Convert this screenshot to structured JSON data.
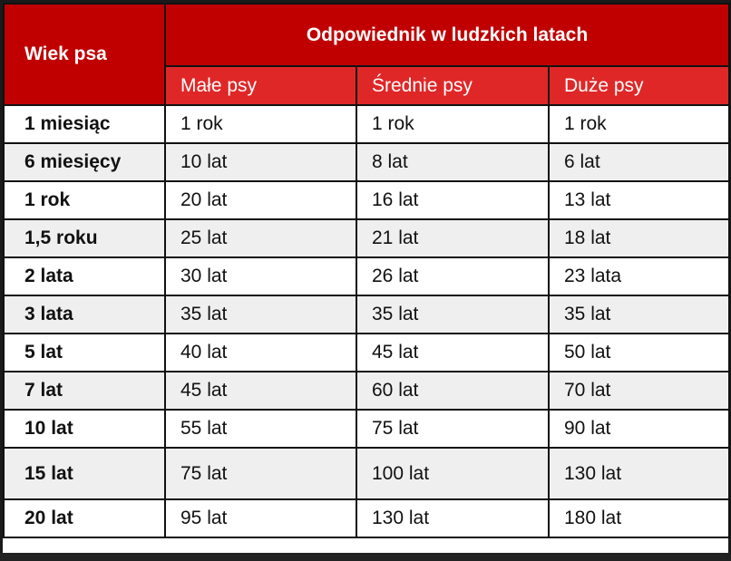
{
  "table": {
    "corner_header": "Wiek psa",
    "group_header": "Odpowiednik w ludzkich latach",
    "sub_headers": [
      "Małe psy",
      "Średnie psy",
      "Duże psy"
    ],
    "colors": {
      "header_dark_red": "#c00000",
      "header_light_red": "#e02727",
      "row_alt": "#efefef",
      "border": "#111111"
    },
    "rows": [
      {
        "age": "1 miesiąc",
        "small": "1 rok",
        "medium": "1 rok",
        "large": "1 rok"
      },
      {
        "age": "6 miesięcy",
        "small": "10 lat",
        "medium": "8 lat",
        "large": "6 lat"
      },
      {
        "age": "1 rok",
        "small": "20 lat",
        "medium": "16 lat",
        "large": "13 lat"
      },
      {
        "age": "1,5 roku",
        "small": "25 lat",
        "medium": "21 lat",
        "large": "18 lat"
      },
      {
        "age": "2 lata",
        "small": "30 lat",
        "medium": "26 lat",
        "large": "23 lata"
      },
      {
        "age": "3 lata",
        "small": "35 lat",
        "medium": "35 lat",
        "large": "35 lat"
      },
      {
        "age": "5 lat",
        "small": "40 lat",
        "medium": "45 lat",
        "large": "50 lat"
      },
      {
        "age": "7 lat",
        "small": "45 lat",
        "medium": "60 lat",
        "large": "70 lat"
      },
      {
        "age": "10 lat",
        "small": "55 lat",
        "medium": "75 lat",
        "large": "90 lat"
      },
      {
        "age": "15 lat",
        "small": "75 lat",
        "medium": "100 lat",
        "large": "130 lat"
      },
      {
        "age": "20 lat",
        "small": "95 lat",
        "medium": "130 lat",
        "large": "180 lat"
      }
    ]
  }
}
